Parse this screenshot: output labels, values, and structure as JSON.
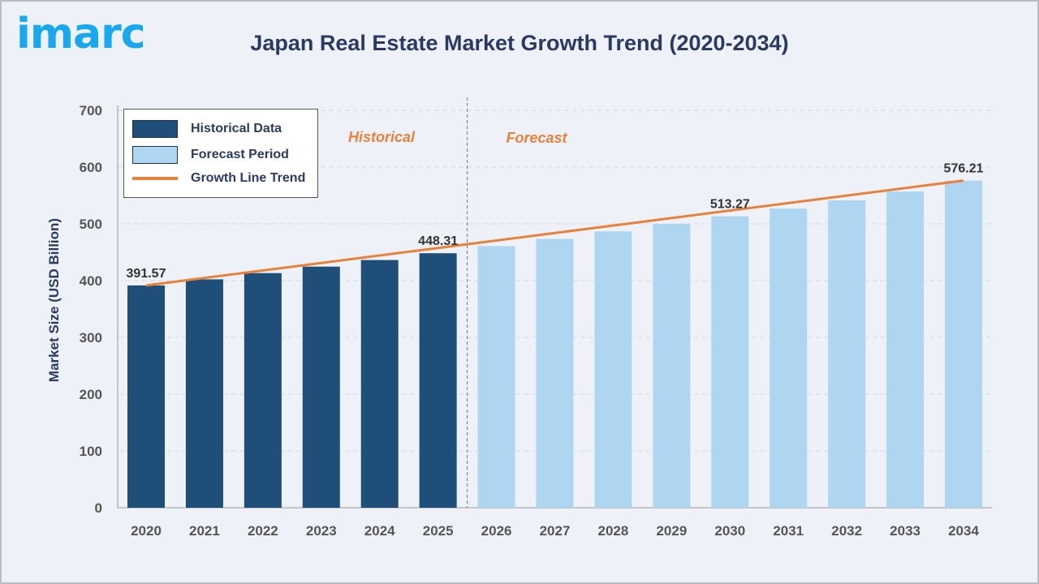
{
  "logo_text": "imarc",
  "chart_data": {
    "type": "bar",
    "title": "Japan Real Estate Market Growth Trend (2020-2034)",
    "ylabel": "Market Size (USD Billion)",
    "xlabel": "",
    "ylim": [
      0,
      700
    ],
    "yticks": [
      0,
      100,
      200,
      300,
      400,
      500,
      600,
      700
    ],
    "grid": true,
    "legend_position": "top-left",
    "categories": [
      "2020",
      "2021",
      "2022",
      "2023",
      "2024",
      "2025",
      "2026",
      "2027",
      "2028",
      "2029",
      "2030",
      "2031",
      "2032",
      "2033",
      "2034"
    ],
    "series": [
      {
        "name": "Historical Data",
        "color": "#1f4e79",
        "values": [
          391.57,
          402.3,
          413.3,
          424.7,
          436.3,
          448.31,
          null,
          null,
          null,
          null,
          null,
          null,
          null,
          null,
          null
        ]
      },
      {
        "name": "Forecast Period",
        "color": "#aed6f1",
        "values": [
          null,
          null,
          null,
          null,
          null,
          null,
          460.9,
          473.6,
          486.8,
          500.0,
          513.27,
          527.0,
          541.5,
          557.0,
          576.21
        ]
      },
      {
        "name": "Growth Line Trend",
        "color": "#e8813a",
        "type": "line",
        "values": [
          391.57,
          402.3,
          413.3,
          424.7,
          436.3,
          448.31,
          460.9,
          473.6,
          486.8,
          500.0,
          513.27,
          527.0,
          541.5,
          557.0,
          576.21
        ]
      }
    ],
    "data_labels": [
      {
        "category": "2020",
        "text": "391.57"
      },
      {
        "category": "2025",
        "text": "448.31"
      },
      {
        "category": "2030",
        "text": "513.27"
      },
      {
        "category": "2034",
        "text": "576.21"
      }
    ],
    "annotations": {
      "historical": "Historical",
      "forecast": "Forecast"
    }
  }
}
